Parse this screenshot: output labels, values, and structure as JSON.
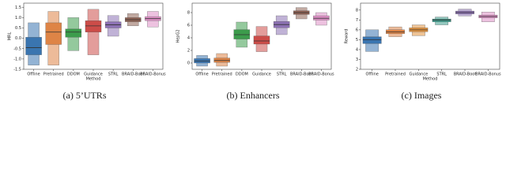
{
  "chart_data": [
    {
      "type": "boxen",
      "caption": "(a) 5’UTRs",
      "ylabel": "MRL",
      "xlabel": "Method",
      "categories": [
        "Offline",
        "Pretrained",
        "DDOM",
        "Guidance",
        "STRL",
        "BRAID-Boot",
        "BRAID-Bonus"
      ],
      "colors": [
        "#3a75b0",
        "#de8446",
        "#3c9c4c",
        "#cc4c48",
        "#8d72b4",
        "#8e6254",
        "#de90c6"
      ],
      "boxes": [
        {
          "low": -1.3,
          "q1": -0.8,
          "median": -0.45,
          "q3": 0.05,
          "high": 0.75
        },
        {
          "low": -1.3,
          "q1": -0.3,
          "median": 0.3,
          "q3": 0.75,
          "high": 1.3
        },
        {
          "low": -0.6,
          "q1": 0.05,
          "median": 0.3,
          "q3": 0.45,
          "high": 1.0
        },
        {
          "low": -0.8,
          "q1": 0.3,
          "median": 0.6,
          "q3": 0.85,
          "high": 1.4
        },
        {
          "low": 0.1,
          "q1": 0.5,
          "median": 0.65,
          "q3": 0.8,
          "high": 1.1
        },
        {
          "low": 0.6,
          "q1": 0.8,
          "median": 0.9,
          "q3": 1.0,
          "high": 1.2
        },
        {
          "low": 0.55,
          "q1": 0.85,
          "median": 0.95,
          "q3": 1.05,
          "high": 1.3
        }
      ],
      "ylim": [
        -1.5,
        1.7
      ],
      "yticks": [
        {
          "value": -1.5,
          "label": "-1.5"
        },
        {
          "value": -1.0,
          "label": "-1.0"
        },
        {
          "value": -0.5,
          "label": "-0.5"
        },
        {
          "value": 0,
          "label": "0.0"
        },
        {
          "value": 0.5,
          "label": "0.5"
        },
        {
          "value": 1.0,
          "label": "1.0"
        },
        {
          "value": 1.5,
          "label": "1.5"
        }
      ]
    },
    {
      "type": "boxen",
      "caption": "(b) Enhancers",
      "ylabel": "HepG2",
      "categories": [
        "Offline",
        "Pretrained",
        "DDOM",
        "Guidance",
        "STRL",
        "BRAID-Boot",
        "BRAID-Bonus"
      ],
      "colors": [
        "#3a75b0",
        "#de8446",
        "#3c9c4c",
        "#cc4c48",
        "#8d72b4",
        "#8e6254",
        "#de90c6"
      ],
      "boxes": [
        {
          "low": -0.5,
          "q1": 0.0,
          "median": 0.3,
          "q3": 0.7,
          "high": 1.2
        },
        {
          "low": -0.5,
          "q1": 0.1,
          "median": 0.4,
          "q3": 0.8,
          "high": 1.5
        },
        {
          "low": 2.5,
          "q1": 3.8,
          "median": 4.5,
          "q3": 5.3,
          "high": 6.5
        },
        {
          "low": 1.8,
          "q1": 3.0,
          "median": 3.5,
          "q3": 4.3,
          "high": 5.8
        },
        {
          "low": 4.5,
          "q1": 5.6,
          "median": 6.1,
          "q3": 6.6,
          "high": 7.5
        },
        {
          "low": 7.0,
          "q1": 7.7,
          "median": 8.0,
          "q3": 8.3,
          "high": 8.8
        },
        {
          "low": 6.0,
          "q1": 6.8,
          "median": 7.1,
          "q3": 7.5,
          "high": 8.0
        }
      ],
      "ylim": [
        -1,
        9.5
      ],
      "yticks": [
        0,
        2,
        4,
        6,
        8
      ]
    },
    {
      "type": "boxen",
      "caption": "(c) Images",
      "ylabel": "Reward",
      "xlabel": "Method",
      "categories": [
        "Offline",
        "Pretrained",
        "Guidance",
        "STRL",
        "BRAID-Boot",
        "BRAID-Bonus"
      ],
      "colors": [
        "#3a75b0",
        "#de8446",
        "#e0913e",
        "#3c9c8c",
        "#8d72b4",
        "#de90c6"
      ],
      "boxes": [
        {
          "low": 3.8,
          "q1": 4.6,
          "median": 5.0,
          "q3": 5.3,
          "high": 6.0
        },
        {
          "low": 5.3,
          "q1": 5.6,
          "median": 5.8,
          "q3": 6.0,
          "high": 6.3
        },
        {
          "low": 5.4,
          "q1": 5.8,
          "median": 6.0,
          "q3": 6.2,
          "high": 6.5
        },
        {
          "low": 6.5,
          "q1": 6.8,
          "median": 7.0,
          "q3": 7.1,
          "high": 7.3
        },
        {
          "low": 7.4,
          "q1": 7.6,
          "median": 7.75,
          "q3": 7.9,
          "high": 8.1
        },
        {
          "low": 6.8,
          "q1": 7.2,
          "median": 7.35,
          "q3": 7.5,
          "high": 7.8
        }
      ],
      "ylim": [
        2,
        8.7
      ],
      "yticks": [
        2,
        3,
        4,
        5,
        6,
        7,
        8
      ]
    }
  ]
}
